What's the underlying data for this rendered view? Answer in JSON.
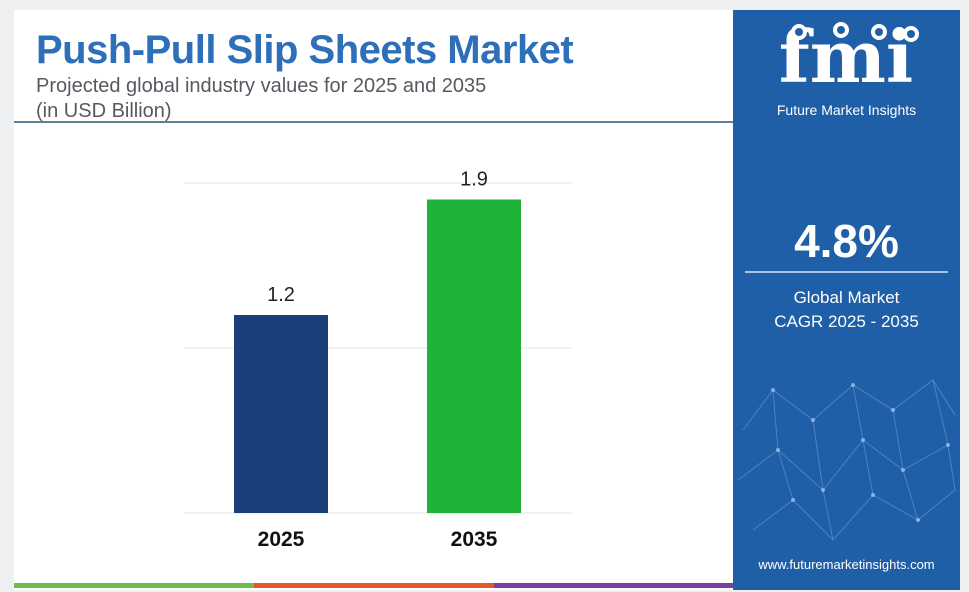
{
  "title": "Push-Pull Slip Sheets Market",
  "subtitle_line1": "Projected global industry values for 2025 and 2035",
  "subtitle_line2": "(in USD Billion)",
  "brand": {
    "logo_text": "fmi",
    "tagline": "Future Market Insights",
    "website": "www.futuremarketinsights.com"
  },
  "cagr": {
    "value": "4.8%",
    "label_line1": "Global Market",
    "label_line2": "CAGR 2025 - 2035"
  },
  "colors": {
    "title": "#2d6fb8",
    "panel": "#1f5fa8",
    "bar_2025": "#1b3f7a",
    "bar_2035": "#20b33a",
    "strip": [
      "#6abf4b",
      "#e8552b",
      "#7a3fa0"
    ]
  },
  "chart_data": {
    "type": "bar",
    "categories": [
      "2025",
      "2035"
    ],
    "values": [
      1.2,
      1.9
    ],
    "data_labels": [
      "1.2",
      "1.9"
    ],
    "ylim": [
      0,
      2.0
    ],
    "grid": true
  }
}
